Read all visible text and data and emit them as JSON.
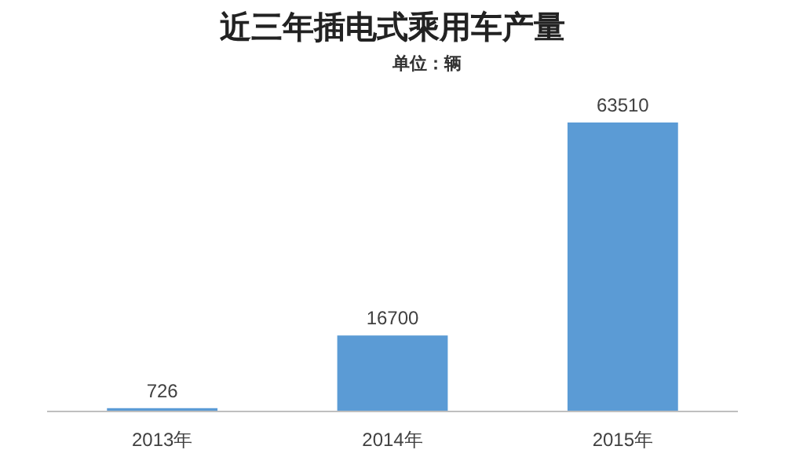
{
  "chart_data": {
    "type": "bar",
    "title": "近三年插电式乘用车产量",
    "subtitle": "单位：辆",
    "categories": [
      "2013年",
      "2014年",
      "2015年"
    ],
    "values": [
      726,
      16700,
      63510
    ],
    "color": "#5b9bd5",
    "data_labels": true
  }
}
